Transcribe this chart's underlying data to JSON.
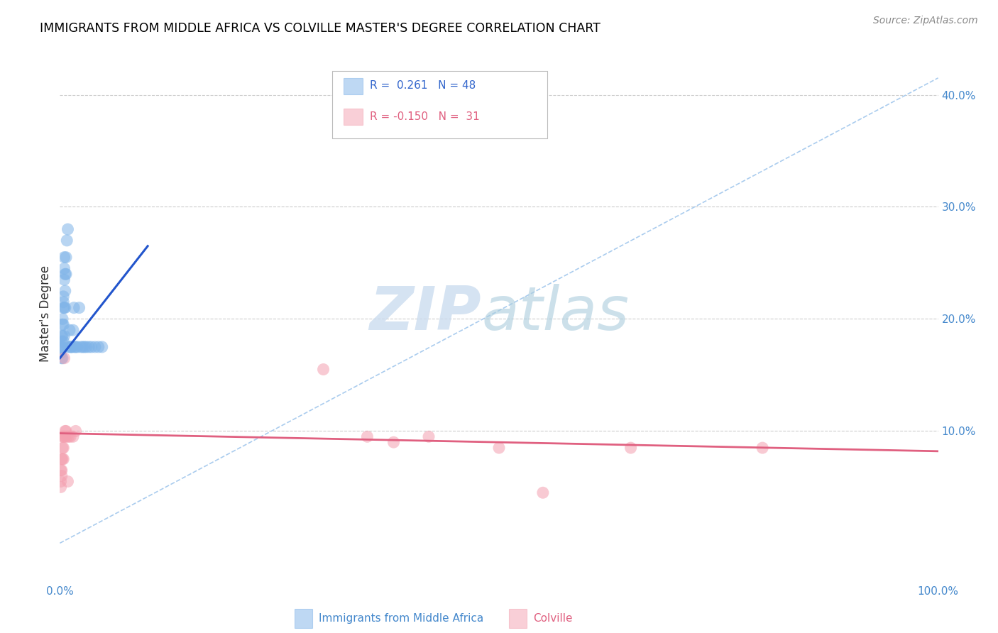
{
  "title": "IMMIGRANTS FROM MIDDLE AFRICA VS COLVILLE MASTER'S DEGREE CORRELATION CHART",
  "source": "Source: ZipAtlas.com",
  "ylabel": "Master's Degree",
  "right_yticks": [
    "40.0%",
    "30.0%",
    "20.0%",
    "10.0%"
  ],
  "right_ytick_vals": [
    0.4,
    0.3,
    0.2,
    0.1
  ],
  "xlim": [
    0.0,
    1.0
  ],
  "ylim": [
    -0.035,
    0.445
  ],
  "legend1_R": "0.261",
  "legend1_N": "48",
  "legend2_R": "-0.150",
  "legend2_N": "31",
  "blue_color": "#7EB3E8",
  "pink_color": "#F4A0B0",
  "trend_blue": "#2255CC",
  "trend_pink": "#E06080",
  "dashed_color": "#AACCEE",
  "watermark_zip": "ZIP",
  "watermark_atlas": "atlas",
  "legend_label1": "Immigrants from Middle Africa",
  "legend_label2": "Colville",
  "blue_x": [
    0.001,
    0.001,
    0.002,
    0.002,
    0.002,
    0.002,
    0.003,
    0.003,
    0.003,
    0.003,
    0.003,
    0.004,
    0.004,
    0.004,
    0.004,
    0.004,
    0.005,
    0.005,
    0.005,
    0.005,
    0.005,
    0.006,
    0.006,
    0.006,
    0.007,
    0.007,
    0.008,
    0.009,
    0.01,
    0.011,
    0.012,
    0.013,
    0.014,
    0.015,
    0.016,
    0.017,
    0.018,
    0.02,
    0.022,
    0.024,
    0.026,
    0.028,
    0.03,
    0.033,
    0.036,
    0.04,
    0.044,
    0.048
  ],
  "blue_y": [
    0.175,
    0.17,
    0.18,
    0.185,
    0.175,
    0.165,
    0.2,
    0.195,
    0.185,
    0.175,
    0.165,
    0.215,
    0.22,
    0.21,
    0.195,
    0.18,
    0.255,
    0.245,
    0.235,
    0.21,
    0.185,
    0.24,
    0.225,
    0.21,
    0.255,
    0.24,
    0.27,
    0.28,
    0.175,
    0.19,
    0.175,
    0.175,
    0.175,
    0.19,
    0.21,
    0.175,
    0.175,
    0.175,
    0.21,
    0.175,
    0.175,
    0.175,
    0.175,
    0.175,
    0.175,
    0.175,
    0.175,
    0.175
  ],
  "pink_x": [
    0.001,
    0.001,
    0.001,
    0.002,
    0.002,
    0.002,
    0.003,
    0.003,
    0.003,
    0.004,
    0.004,
    0.004,
    0.005,
    0.005,
    0.006,
    0.006,
    0.007,
    0.008,
    0.009,
    0.01,
    0.012,
    0.015,
    0.018,
    0.3,
    0.35,
    0.38,
    0.42,
    0.5,
    0.55,
    0.65,
    0.8
  ],
  "pink_y": [
    0.065,
    0.055,
    0.05,
    0.075,
    0.065,
    0.06,
    0.095,
    0.085,
    0.075,
    0.095,
    0.085,
    0.075,
    0.095,
    0.165,
    0.1,
    0.095,
    0.1,
    0.095,
    0.055,
    0.095,
    0.095,
    0.095,
    0.1,
    0.155,
    0.095,
    0.09,
    0.095,
    0.085,
    0.045,
    0.085,
    0.085
  ],
  "blue_trend_x": [
    0.0,
    0.1
  ],
  "blue_trend_y": [
    0.165,
    0.265
  ],
  "pink_trend_x": [
    0.0,
    1.0
  ],
  "pink_trend_y": [
    0.098,
    0.082
  ],
  "dashed_trend_x": [
    0.0,
    1.0
  ],
  "dashed_trend_y": [
    0.0,
    0.415
  ]
}
